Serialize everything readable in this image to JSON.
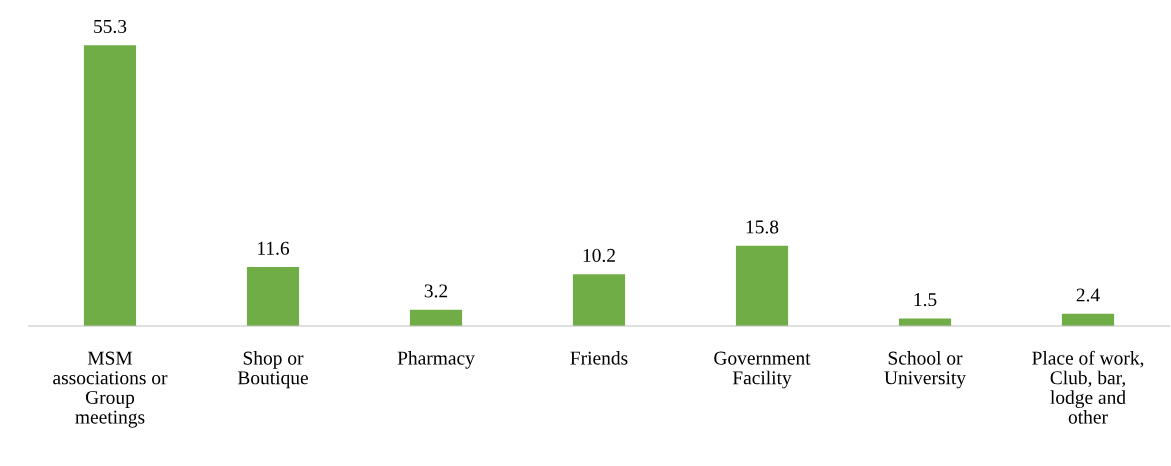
{
  "chart_data": {
    "type": "bar",
    "categories": [
      "MSM\nassociations or\nGroup\nmeetings",
      "Shop or\nBoutique",
      "Pharmacy",
      "Friends",
      "Government\nFacility",
      "School or\nUniversity",
      "Place of work,\nClub, bar,\nlodge and\nother"
    ],
    "values": [
      55.3,
      11.6,
      3.2,
      10.2,
      15.8,
      1.5,
      2.4
    ],
    "color": "#70ad47",
    "data_labels": true,
    "grid": false,
    "legend": false
  }
}
